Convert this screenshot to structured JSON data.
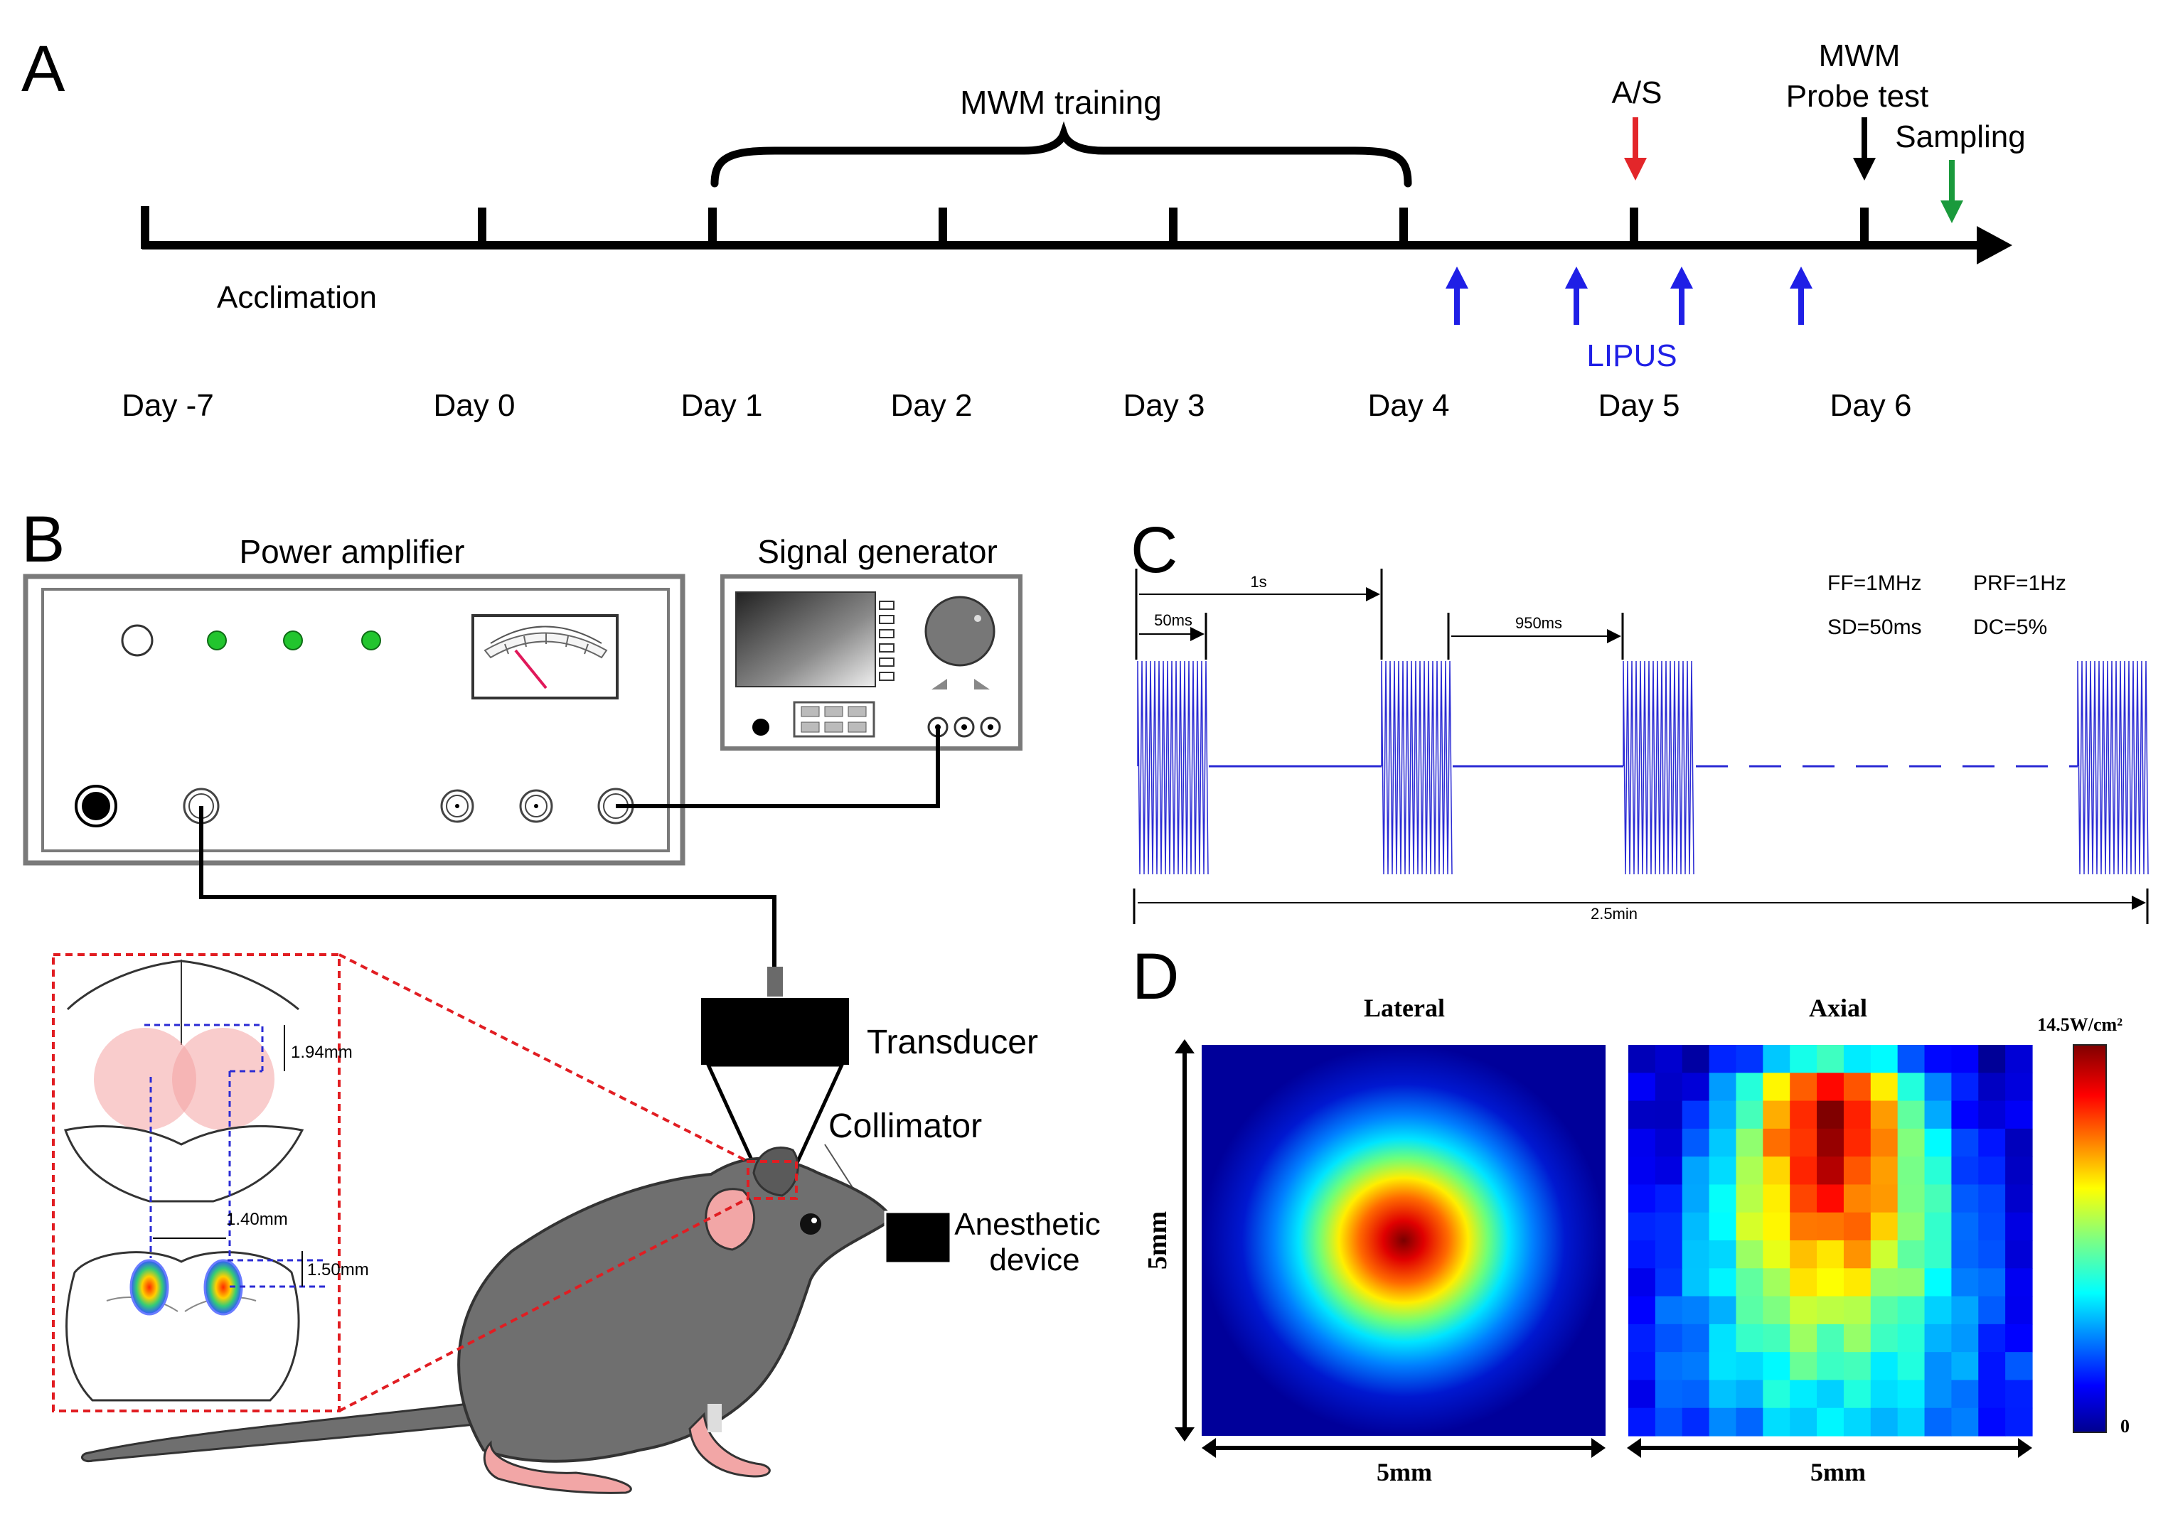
{
  "colors": {
    "lipus": "#1f1fe6",
    "as_arrow": "#e3262a",
    "sampling_arrow": "#1a9a3c",
    "wave": "#2b2bd4",
    "led": "#22c52e",
    "focal_pink": "#f4a3a3",
    "brain_dash": "#e11d22",
    "mouse_body": "#6f6f6f",
    "mouse_pink": "#f2a6a6"
  },
  "panelA": {
    "letter": "A",
    "training_label": "MWM training",
    "acclimation_label": "Acclimation",
    "as_label": "A/S",
    "mwm_label": "MWM",
    "probe_label": "Probe test",
    "sampling_label": "Sampling",
    "lipus_label": "LIPUS",
    "days": [
      "Day -7",
      "Day 0",
      "Day 1",
      "Day 2",
      "Day 3",
      "Day 4",
      "Day 5",
      "Day 6"
    ]
  },
  "panelB": {
    "letter": "B",
    "power_amp_label": "Power amplifier",
    "signal_gen_label": "Signal generator",
    "transducer_label": "Transducer",
    "collimator_label": "Collimator",
    "anesthetic_label_1": "Anesthetic",
    "anesthetic_label_2": "device",
    "dim_1": "1.94mm",
    "dim_2": "1.40mm",
    "dim_3": "1.50mm"
  },
  "panelC": {
    "letter": "C",
    "label_1s": "1s",
    "label_50ms": "50ms",
    "label_950ms": "950ms",
    "label_total": "2.5min",
    "ff": "FF=1MHz",
    "prf": "PRF=1Hz",
    "sd": "SD=50ms",
    "dc": "DC=5%"
  },
  "panelD": {
    "letter": "D",
    "lateral_title": "Lateral",
    "axial_title": "Axial",
    "y_axis_label": "5mm",
    "x_axis_label_lateral": "5mm",
    "x_axis_label_axial": "5mm",
    "colorbar_max": "14.5W/cm²",
    "colorbar_min": "0"
  }
}
